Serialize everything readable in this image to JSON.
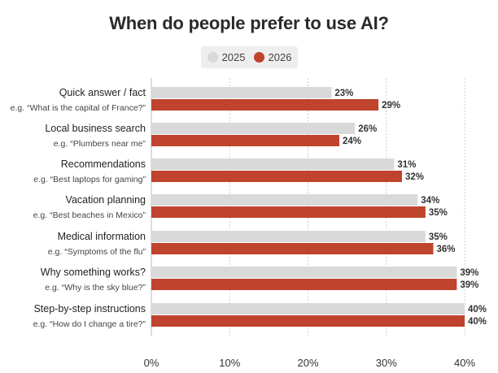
{
  "chart_data": {
    "type": "bar",
    "orientation": "horizontal",
    "title": "When do people prefer to use AI?",
    "categories": [
      {
        "label": "Quick answer / fact",
        "example": "e.g. “What is the capital of France?”"
      },
      {
        "label": "Local business search",
        "example": "e.g. “Plumbers near me”"
      },
      {
        "label": "Recommendations",
        "example": "e.g. “Best laptops for gaming”"
      },
      {
        "label": "Vacation planning",
        "example": "e.g. “Best beaches in Mexico”"
      },
      {
        "label": "Medical information",
        "example": "e.g. “Symptoms of the flu”"
      },
      {
        "label": "Why something works?",
        "example": "e.g. “Why is the sky blue?”"
      },
      {
        "label": "Step-by-step instructions",
        "example": "e.g. “How do I change a tire?”"
      }
    ],
    "series": [
      {
        "name": "2025",
        "color": "#d9d9d9",
        "values": [
          23,
          26,
          31,
          34,
          35,
          39,
          40
        ],
        "labels": [
          "23%",
          "26%",
          "31%",
          "34%",
          "35%",
          "39%",
          "40%"
        ]
      },
      {
        "name": "2026",
        "color": "#c0432e",
        "values": [
          29,
          24,
          32,
          35,
          36,
          39,
          40
        ],
        "labels": [
          "29%",
          "24%",
          "32%",
          "35%",
          "36%",
          "39%",
          "40%"
        ]
      }
    ],
    "xlim": [
      0,
      40
    ],
    "xticks": [
      0,
      10,
      20,
      30,
      40
    ],
    "xtick_labels": [
      "0%",
      "10%",
      "20%",
      "30%",
      "40%"
    ],
    "grid": true,
    "legend": "top-center"
  }
}
